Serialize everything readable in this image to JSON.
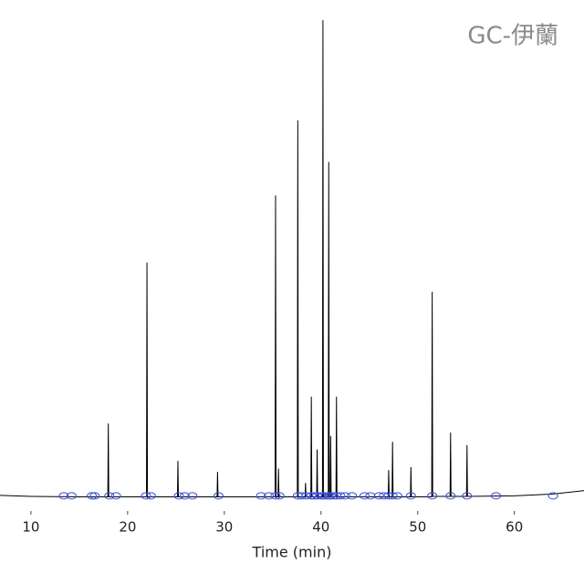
{
  "chart_data": {
    "type": "line",
    "title": "GC-伊蘭",
    "xlabel": "Time (min)",
    "xlim": [
      6.8,
      67.2
    ],
    "xticks": [
      10,
      20,
      30,
      40,
      50,
      60
    ],
    "ylim": [
      0,
      100
    ],
    "series": [
      {
        "color": "#000000",
        "x": [
          6.8,
          10,
          15,
          17.95,
          18.0,
          18.05,
          21.95,
          22.0,
          22.05,
          25.15,
          25.2,
          25.25,
          29.25,
          29.3,
          29.35,
          35.25,
          35.3,
          35.35,
          35.55,
          35.6,
          35.65,
          37.55,
          37.6,
          37.65,
          38.35,
          38.4,
          38.45,
          38.95,
          39.0,
          39.05,
          39.55,
          39.6,
          39.65,
          40.15,
          40.2,
          40.25,
          40.75,
          40.8,
          40.85,
          40.95,
          41.0,
          41.05,
          41.55,
          41.6,
          41.65,
          46.95,
          47.0,
          47.05,
          47.35,
          47.4,
          47.45,
          49.25,
          49.3,
          49.35,
          51.45,
          51.5,
          51.55,
          53.35,
          53.4,
          53.45,
          55.05,
          55.1,
          55.15,
          60,
          64,
          67.2
        ],
        "values": [
          0.4,
          0.2,
          0.1,
          0.1,
          15.4,
          0.1,
          0.1,
          49,
          0.1,
          0.1,
          7.6,
          0.1,
          0.1,
          5.3,
          0.1,
          0.1,
          63,
          0.1,
          0.1,
          6,
          0.1,
          0.1,
          78.7,
          0.1,
          0.1,
          3,
          0.1,
          0.1,
          21,
          0.1,
          0.1,
          10,
          0.1,
          0.1,
          99.6,
          0.1,
          0.1,
          70,
          0.1,
          0.1,
          12.8,
          0.1,
          0.1,
          21,
          0.1,
          0.1,
          5.7,
          0.1,
          0.1,
          11.6,
          0.1,
          0.1,
          6.3,
          0.1,
          0.1,
          42.9,
          0.2,
          0.2,
          13.5,
          0.2,
          0.2,
          10.9,
          0.2,
          0.3,
          0.7,
          1.4
        ]
      },
      {
        "type": "scatter",
        "color": "#3b4fd8",
        "x": [
          13.4,
          14.2,
          16.3,
          16.6,
          18.1,
          18.8,
          21.9,
          22.4,
          25.3,
          25.9,
          26.7,
          29.4,
          33.8,
          34.6,
          35.3,
          35.7,
          37.6,
          38.0,
          38.5,
          39.0,
          39.3,
          39.6,
          40.0,
          40.2,
          40.5,
          40.8,
          41.0,
          41.3,
          41.6,
          42.0,
          42.5,
          43.2,
          44.5,
          45.1,
          46.0,
          46.5,
          47.0,
          47.4,
          47.9,
          49.3,
          51.5,
          53.4,
          55.1,
          58.1,
          64.0
        ],
        "values": [
          0.3,
          0.3,
          0.3,
          0.3,
          0.3,
          0.3,
          0.3,
          0.3,
          0.3,
          0.3,
          0.3,
          0.3,
          0.3,
          0.3,
          0.3,
          0.3,
          0.3,
          0.3,
          0.3,
          0.3,
          0.3,
          0.3,
          0.3,
          0.3,
          0.3,
          0.3,
          0.3,
          0.3,
          0.3,
          0.3,
          0.3,
          0.3,
          0.3,
          0.3,
          0.3,
          0.3,
          0.3,
          0.3,
          0.3,
          0.3,
          0.3,
          0.3,
          0.3,
          0.3,
          0.3
        ]
      }
    ]
  }
}
